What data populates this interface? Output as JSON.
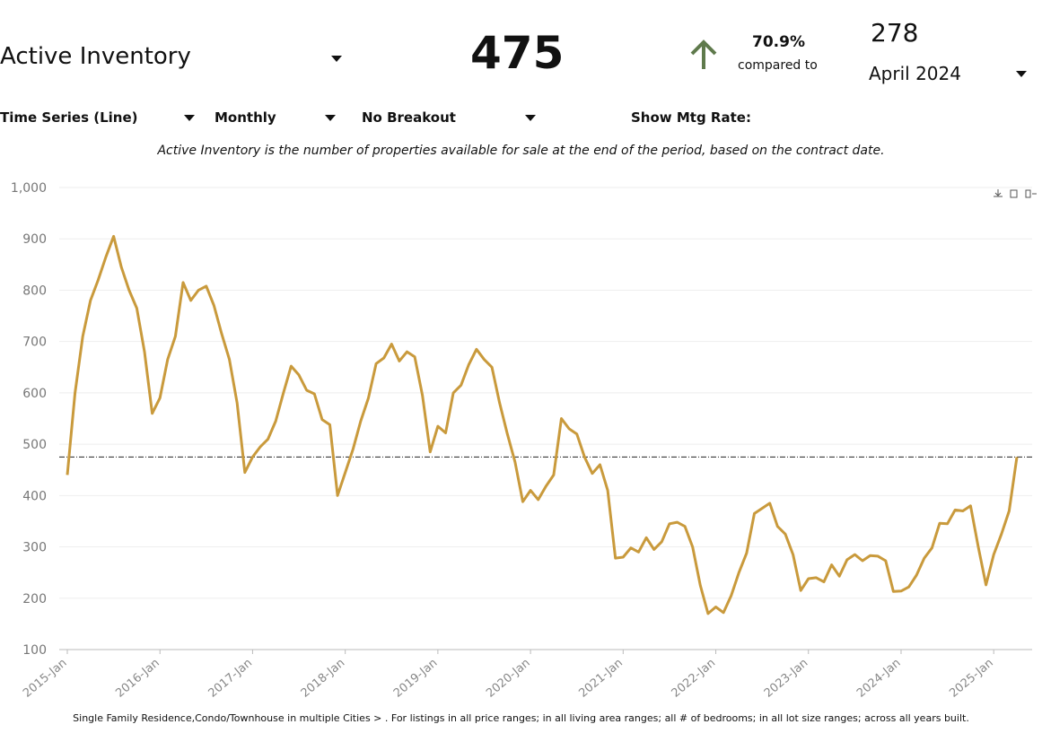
{
  "controls": {
    "metric": "Active Inventory",
    "chart_type": "Time Series (Line)",
    "frequency": "Monthly",
    "breakout": "No Breakout",
    "mtg_rate_label": "Show Mtg Rate:"
  },
  "kpi": {
    "value": 475,
    "change": "70.9%",
    "compared_label": "compared to",
    "compare_value": 278,
    "compare_period": "April 2024"
  },
  "description": "Active Inventory is the number of properties available for sale at the end of the period, based on the contract date.",
  "chart_data": {
    "type": "line",
    "color": "#c99a3c",
    "categories": [
      "2015-Jan",
      null,
      null,
      null,
      null,
      null,
      null,
      null,
      null,
      null,
      null,
      null,
      "2016-Jan",
      null,
      null,
      null,
      null,
      null,
      null,
      null,
      null,
      null,
      null,
      null,
      "2017-Jan",
      null,
      null,
      null,
      null,
      null,
      null,
      null,
      null,
      null,
      null,
      null,
      "2018-Jan",
      null,
      null,
      null,
      null,
      null,
      null,
      null,
      null,
      null,
      null,
      null,
      "2019-Jan",
      null,
      null,
      null,
      null,
      null,
      null,
      null,
      null,
      null,
      null,
      null,
      "2020-Jan",
      null,
      null,
      null,
      null,
      null,
      null,
      null,
      null,
      null,
      null,
      null,
      "2021-Jan",
      null,
      null,
      null,
      null,
      null,
      null,
      null,
      null,
      null,
      null,
      null,
      "2022-Jan",
      null,
      null,
      null,
      null,
      null,
      null,
      null,
      null,
      null,
      null,
      null,
      "2023-Jan",
      null,
      null,
      null,
      null,
      null,
      null,
      null,
      null,
      null,
      null,
      null,
      "2024-Jan",
      null,
      null,
      null,
      null,
      null,
      null,
      null,
      null,
      null,
      null,
      null,
      "2025-Jan",
      null,
      null,
      null
    ],
    "values": [
      440,
      600,
      710,
      780,
      820,
      865,
      905,
      845,
      800,
      765,
      680,
      560,
      590,
      665,
      710,
      815,
      780,
      800,
      808,
      770,
      715,
      665,
      580,
      445,
      475,
      495,
      510,
      545,
      600,
      652,
      635,
      605,
      598,
      548,
      538,
      400,
      445,
      490,
      545,
      590,
      657,
      668,
      695,
      662,
      680,
      670,
      595,
      485,
      535,
      522,
      600,
      615,
      655,
      685,
      665,
      650,
      580,
      520,
      465,
      388,
      410,
      392,
      418,
      440,
      550,
      530,
      520,
      475,
      443,
      460,
      410,
      278,
      280,
      298,
      290,
      318,
      295,
      310,
      345,
      348,
      340,
      300,
      225,
      170,
      183,
      172,
      205,
      250,
      288,
      365,
      375,
      385,
      340,
      325,
      285,
      215,
      238,
      240,
      232,
      265,
      243,
      275,
      285,
      273,
      283,
      282,
      273,
      213,
      214,
      222,
      245,
      278,
      298,
      346,
      345,
      372,
      370,
      380,
      300,
      226,
      285,
      325,
      370,
      475
    ],
    "reference_line": 475,
    "ylim": [
      100,
      1000
    ],
    "yticks": [
      100,
      200,
      300,
      400,
      500,
      600,
      700,
      800,
      900,
      {
        "value": 1000,
        "label": "1,000"
      }
    ],
    "grid": true
  },
  "footnote": "Single Family Residence,Condo/Townhouse in multiple Cities > . For listings in all price ranges; in all living area ranges; all # of bedrooms; in all lot size ranges; across all years built."
}
